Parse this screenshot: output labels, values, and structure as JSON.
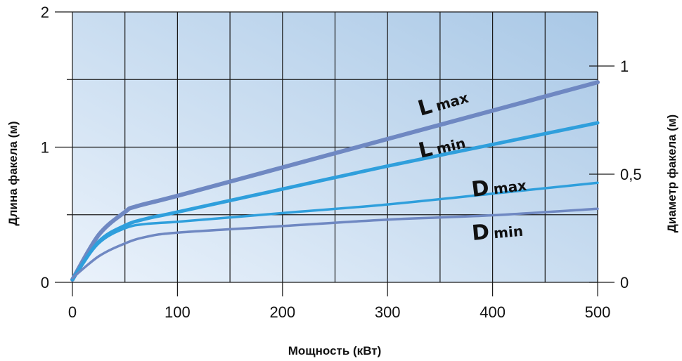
{
  "chart_data": {
    "type": "line",
    "xlabel": "Мощность (кВт)",
    "ylabel_left": "Длина факела (м)",
    "ylabel_right": "Диаметр факела (м)",
    "xlim": [
      0,
      500
    ],
    "ylim_left": [
      0,
      2
    ],
    "ylim_right": [
      0,
      1.25
    ],
    "x_ticks": [
      "0",
      "100",
      "200",
      "300",
      "400",
      "500"
    ],
    "y_left_ticks": [
      "0",
      "1",
      "2"
    ],
    "y_right_ticks": [
      "0",
      "0,5",
      "1"
    ],
    "grid": true,
    "series": [
      {
        "prefix": "L",
        "suffix": "max",
        "axis": "left",
        "color": "#6f88c2",
        "x": [
          0,
          25,
          50,
          60,
          100,
          200,
          300,
          400,
          500
        ],
        "y": [
          0.02,
          0.35,
          0.52,
          0.56,
          0.64,
          0.85,
          1.06,
          1.27,
          1.48
        ]
      },
      {
        "prefix": "L",
        "suffix": "min",
        "axis": "left",
        "color": "#2f9fdc",
        "x": [
          0,
          25,
          50,
          70,
          100,
          200,
          300,
          400,
          500
        ],
        "y": [
          0.02,
          0.3,
          0.42,
          0.47,
          0.52,
          0.69,
          0.86,
          1.02,
          1.18
        ]
      },
      {
        "prefix": "D",
        "suffix": "max",
        "axis": "right",
        "color": "#2f9fdc",
        "x": [
          0,
          25,
          50,
          70,
          100,
          200,
          300,
          400,
          500
        ],
        "y": [
          0.02,
          0.18,
          0.25,
          0.27,
          0.28,
          0.32,
          0.36,
          0.41,
          0.46
        ]
      },
      {
        "prefix": "D",
        "suffix": "min",
        "axis": "right",
        "color": "#6f88c2",
        "x": [
          0,
          25,
          50,
          70,
          100,
          200,
          300,
          400,
          500
        ],
        "y": [
          0.02,
          0.12,
          0.18,
          0.21,
          0.23,
          0.26,
          0.29,
          0.31,
          0.34
        ]
      }
    ],
    "background_gradient": [
      "#eaf2fb",
      "#a9c8e6"
    ],
    "grid_color": "#1a1a1a"
  }
}
